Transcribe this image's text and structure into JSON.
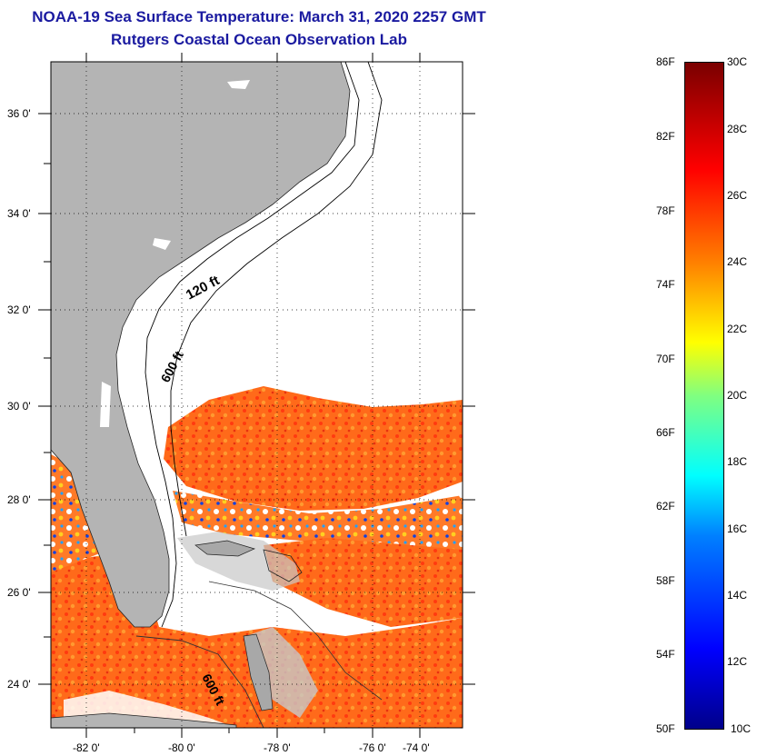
{
  "title": "NOAA-19 Sea Surface Temperature:  March 31, 2020 2257 GMT",
  "subtitle": "Rutgers Coastal Ocean Observation Lab",
  "map": {
    "lat_labels": [
      "24 0'",
      "26 0'",
      "28 0'",
      "30 0'",
      "32 0'",
      "34 0'",
      "36 0'"
    ],
    "lon_labels": [
      "-82 0'",
      "-80 0'",
      "-78 0'",
      "-76 0'",
      "-74 0'"
    ],
    "contour_labels": [
      "120 ft",
      "600 ft",
      "600 ft"
    ],
    "colors": {
      "land": "#b4b4b4",
      "cloud": "#ffffff",
      "warm_sst": "#ff5020"
    }
  },
  "colorbar": {
    "fahrenheit": [
      "86F",
      "82F",
      "78F",
      "74F",
      "70F",
      "66F",
      "62F",
      "58F",
      "54F",
      "50F"
    ],
    "celsius": [
      "30C",
      "28C",
      "26C",
      "24C",
      "22C",
      "20C",
      "18C",
      "16C",
      "14C",
      "12C",
      "10C"
    ]
  }
}
